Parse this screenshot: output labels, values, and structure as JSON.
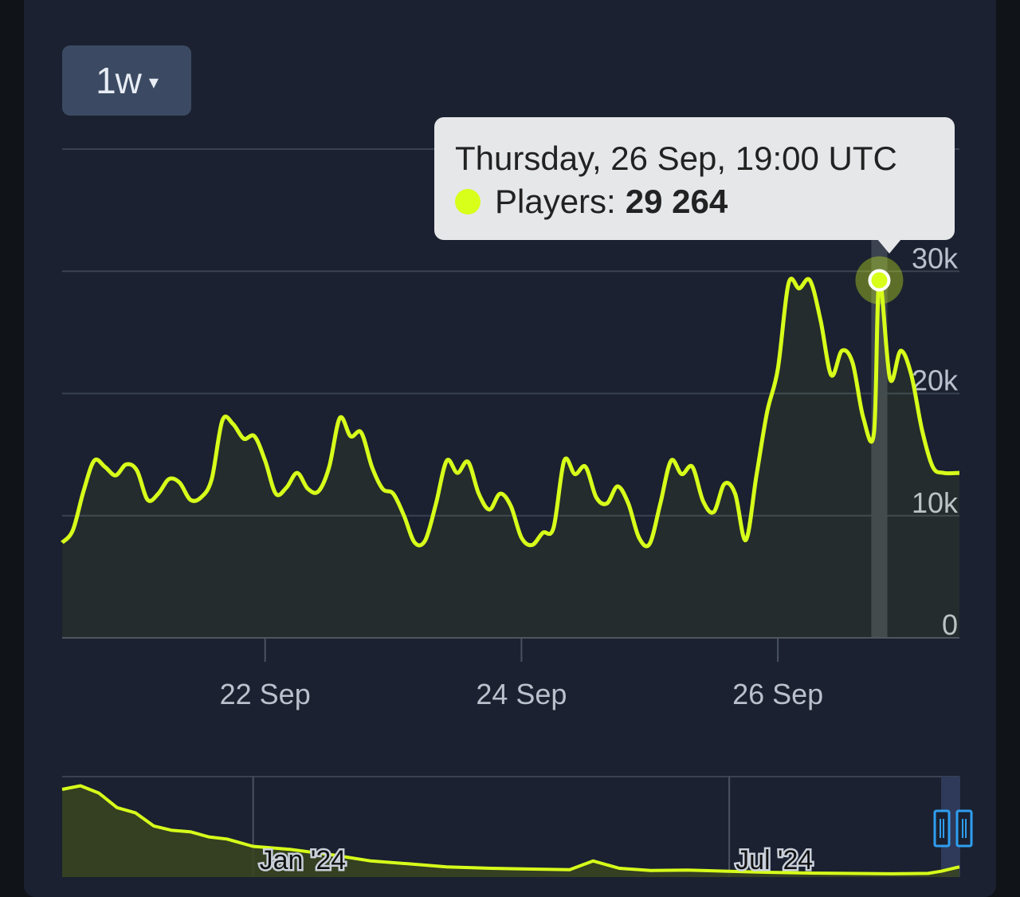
{
  "range_selector": {
    "label": "1w",
    "caret": "▾"
  },
  "tooltip": {
    "title": "Thursday, 26 Sep, 19:00 UTC",
    "series_label": "Players:",
    "value": "29 264"
  },
  "colors": {
    "line": "#d7ff1a",
    "grid": "#3a4252",
    "highlight": "#3b4250",
    "navigator_fill": "#3a4420",
    "navigator_mask": "#2f3a5a",
    "handle": "#2f9ff0"
  },
  "chart_data": [
    {
      "type": "line",
      "title": "",
      "xlabel": "",
      "ylabel": "",
      "x_axis": {
        "type": "datetime",
        "range": [
          "2024-09-20T10:00",
          "2024-09-27T10:00"
        ]
      },
      "ylim": [
        0,
        40000
      ],
      "y_ticks": [
        0,
        10000,
        20000,
        30000
      ],
      "y_tick_labels": [
        "0",
        "10k",
        "20k",
        "30k"
      ],
      "x_ticks": [
        "2024-09-22T00:00",
        "2024-09-24T00:00",
        "2024-09-26T00:00"
      ],
      "x_tick_labels": [
        "22 Sep",
        "24 Sep",
        "26 Sep"
      ],
      "grid": true,
      "highlight_range": [
        "2024-09-26T17:30",
        "2024-09-26T20:30"
      ],
      "hovered_point": {
        "x": "2024-09-26T19:00",
        "y": 29264
      },
      "series": [
        {
          "name": "Players",
          "points": [
            [
              "2024-09-20T10:00",
              7800
            ],
            [
              "2024-09-20T12:00",
              8800
            ],
            [
              "2024-09-20T14:00",
              12000
            ],
            [
              "2024-09-20T16:00",
              14500
            ],
            [
              "2024-09-20T18:00",
              14000
            ],
            [
              "2024-09-20T20:00",
              13300
            ],
            [
              "2024-09-20T22:00",
              14200
            ],
            [
              "2024-09-21T00:00",
              13700
            ],
            [
              "2024-09-21T02:00",
              11300
            ],
            [
              "2024-09-21T04:00",
              11800
            ],
            [
              "2024-09-21T06:00",
              13000
            ],
            [
              "2024-09-21T08:00",
              12700
            ],
            [
              "2024-09-21T10:00",
              11300
            ],
            [
              "2024-09-21T12:00",
              11500
            ],
            [
              "2024-09-21T14:00",
              13000
            ],
            [
              "2024-09-21T16:00",
              17800
            ],
            [
              "2024-09-21T18:00",
              17500
            ],
            [
              "2024-09-21T20:00",
              16300
            ],
            [
              "2024-09-21T22:00",
              16500
            ],
            [
              "2024-09-22T00:00",
              14500
            ],
            [
              "2024-09-22T02:00",
              11800
            ],
            [
              "2024-09-22T04:00",
              12300
            ],
            [
              "2024-09-22T06:00",
              13500
            ],
            [
              "2024-09-22T08:00",
              12200
            ],
            [
              "2024-09-22T10:00",
              12000
            ],
            [
              "2024-09-22T12:00",
              14000
            ],
            [
              "2024-09-22T14:00",
              18000
            ],
            [
              "2024-09-22T16:00",
              16500
            ],
            [
              "2024-09-22T18:00",
              16800
            ],
            [
              "2024-09-22T20:00",
              14000
            ],
            [
              "2024-09-22T22:00",
              12200
            ],
            [
              "2024-09-23T00:00",
              11800
            ],
            [
              "2024-09-23T02:00",
              10000
            ],
            [
              "2024-09-23T04:00",
              7800
            ],
            [
              "2024-09-23T06:00",
              8000
            ],
            [
              "2024-09-23T08:00",
              11000
            ],
            [
              "2024-09-23T10:00",
              14500
            ],
            [
              "2024-09-23T12:00",
              13500
            ],
            [
              "2024-09-23T14:00",
              14400
            ],
            [
              "2024-09-23T16:00",
              11800
            ],
            [
              "2024-09-23T18:00",
              10500
            ],
            [
              "2024-09-23T20:00",
              11800
            ],
            [
              "2024-09-23T22:00",
              10800
            ],
            [
              "2024-09-24T00:00",
              8200
            ],
            [
              "2024-09-24T02:00",
              7600
            ],
            [
              "2024-09-24T04:00",
              8600
            ],
            [
              "2024-09-24T06:00",
              9000
            ],
            [
              "2024-09-24T08:00",
              14500
            ],
            [
              "2024-09-24T10:00",
              13400
            ],
            [
              "2024-09-24T12:00",
              14000
            ],
            [
              "2024-09-24T14:00",
              11500
            ],
            [
              "2024-09-24T16:00",
              11000
            ],
            [
              "2024-09-24T18:00",
              12400
            ],
            [
              "2024-09-24T20:00",
              11000
            ],
            [
              "2024-09-24T22:00",
              8200
            ],
            [
              "2024-09-25T00:00",
              7700
            ],
            [
              "2024-09-25T02:00",
              11000
            ],
            [
              "2024-09-25T04:00",
              14500
            ],
            [
              "2024-09-25T06:00",
              13400
            ],
            [
              "2024-09-25T08:00",
              14000
            ],
            [
              "2024-09-25T10:00",
              11200
            ],
            [
              "2024-09-25T12:00",
              10300
            ],
            [
              "2024-09-25T14:00",
              12600
            ],
            [
              "2024-09-25T16:00",
              11800
            ],
            [
              "2024-09-25T18:00",
              8000
            ],
            [
              "2024-09-25T20:00",
              13300
            ],
            [
              "2024-09-25T22:00",
              18500
            ],
            [
              "2024-09-26T00:00",
              22000
            ],
            [
              "2024-09-26T02:00",
              29000
            ],
            [
              "2024-09-26T04:00",
              28600
            ],
            [
              "2024-09-26T06:00",
              29264
            ],
            [
              "2024-09-26T08:00",
              26000
            ],
            [
              "2024-09-26T10:00",
              21500
            ],
            [
              "2024-09-26T12:00",
              23500
            ],
            [
              "2024-09-26T14:00",
              22500
            ],
            [
              "2024-09-26T16:00",
              18000
            ],
            [
              "2024-09-26T18:00",
              16800
            ],
            [
              "2024-09-26T19:00",
              29264
            ],
            [
              "2024-09-26T21:00",
              21200
            ],
            [
              "2024-09-26T23:00",
              23500
            ],
            [
              "2024-09-27T01:00",
              21500
            ],
            [
              "2024-09-27T03:00",
              17000
            ],
            [
              "2024-09-27T05:00",
              14000
            ],
            [
              "2024-09-27T07:00",
              13500
            ],
            [
              "2024-09-27T10:00",
              13500
            ]
          ]
        }
      ]
    },
    {
      "type": "area",
      "title": "",
      "x_axis": {
        "type": "datetime",
        "range": [
          "2023-10-20",
          "2024-09-27"
        ]
      },
      "x_tick_labels": [
        "Jan '24",
        "Jul '24"
      ],
      "x_ticks": [
        "2024-01-01",
        "2024-07-01"
      ],
      "selected_range": [
        "2024-09-20",
        "2024-09-27"
      ],
      "series": [
        {
          "name": "Players",
          "points": [
            [
              "2023-10-20",
              120000
            ],
            [
              "2023-10-27",
              125000
            ],
            [
              "2023-11-03",
              115000
            ],
            [
              "2023-11-10",
              95000
            ],
            [
              "2023-11-17",
              88000
            ],
            [
              "2023-11-24",
              70000
            ],
            [
              "2023-12-01",
              64000
            ],
            [
              "2023-12-08",
              62000
            ],
            [
              "2023-12-15",
              55000
            ],
            [
              "2023-12-22",
              52000
            ],
            [
              "2024-01-01",
              42000
            ],
            [
              "2024-01-15",
              38000
            ],
            [
              "2024-02-01",
              30000
            ],
            [
              "2024-02-15",
              22000
            ],
            [
              "2024-03-01",
              18000
            ],
            [
              "2024-03-15",
              14000
            ],
            [
              "2024-04-01",
              12000
            ],
            [
              "2024-04-15",
              11000
            ],
            [
              "2024-05-01",
              10000
            ],
            [
              "2024-05-10",
              22000
            ],
            [
              "2024-05-20",
              12000
            ],
            [
              "2024-06-01",
              9000
            ],
            [
              "2024-06-15",
              9500
            ],
            [
              "2024-07-01",
              8000
            ],
            [
              "2024-07-15",
              6500
            ],
            [
              "2024-08-01",
              5500
            ],
            [
              "2024-08-15",
              5000
            ],
            [
              "2024-09-01",
              4500
            ],
            [
              "2024-09-15",
              5000
            ],
            [
              "2024-09-20",
              8000
            ],
            [
              "2024-09-27",
              14000
            ]
          ]
        }
      ]
    }
  ]
}
